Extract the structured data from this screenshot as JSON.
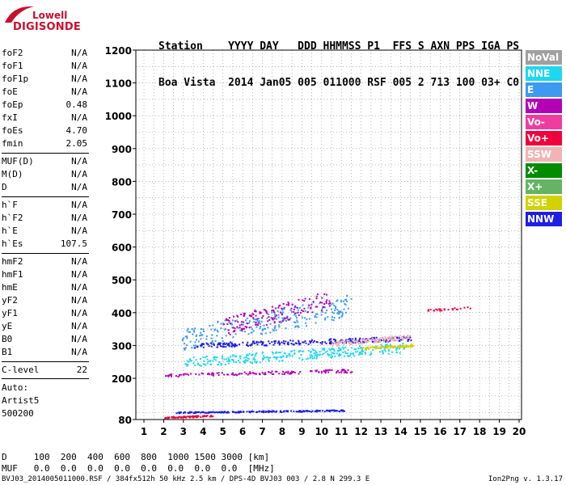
{
  "logo": {
    "line1": "Lowell",
    "line2": "DIGISONDE"
  },
  "header": {
    "row1": "Station    YYYY DAY   DDD HHMMSS P1  FFS S AXN PPS IGA PS",
    "row2": "Boa Vista  2014 Jan05 005 011000 RSF 005 2 713 100 03+ C0"
  },
  "params": [
    {
      "name": "foF2",
      "value": "N/A"
    },
    {
      "name": "foF1",
      "value": "N/A"
    },
    {
      "name": "foF1p",
      "value": "N/A"
    },
    {
      "name": "foE",
      "value": "N/A"
    },
    {
      "name": "foEp",
      "value": "0.48"
    },
    {
      "name": "fxI",
      "value": "N/A"
    },
    {
      "name": "foEs",
      "value": "4.70"
    },
    {
      "name": "fmin",
      "value": "2.05"
    },
    {
      "name": "MUF(D)",
      "value": "N/A"
    },
    {
      "name": "M(D)",
      "value": "N/A"
    },
    {
      "name": "D",
      "value": "N/A"
    },
    {
      "name": "h`F",
      "value": "N/A"
    },
    {
      "name": "h`F2",
      "value": "N/A"
    },
    {
      "name": "h`E",
      "value": "N/A"
    },
    {
      "name": "h`Es",
      "value": "107.5"
    },
    {
      "name": "hmF2",
      "value": "N/A"
    },
    {
      "name": "hmF1",
      "value": "N/A"
    },
    {
      "name": "hmE",
      "value": "N/A"
    },
    {
      "name": "yF2",
      "value": "N/A"
    },
    {
      "name": "yF1",
      "value": "N/A"
    },
    {
      "name": "yE",
      "value": "N/A"
    },
    {
      "name": "B0",
      "value": "N/A"
    },
    {
      "name": "B1",
      "value": "N/A"
    },
    {
      "name": "C-level",
      "value": "22"
    }
  ],
  "auto": [
    "Auto:",
    "Artist5",
    "500200"
  ],
  "legend": [
    {
      "label": "NoVal",
      "color": "#a0a0a0"
    },
    {
      "label": "NNE",
      "color": "#1ed7f0"
    },
    {
      "label": "E",
      "color": "#3c9bf0"
    },
    {
      "label": "W",
      "color": "#b400b4"
    },
    {
      "label": "Vo-",
      "color": "#f03ca0"
    },
    {
      "label": "Vo+",
      "color": "#f0003c"
    },
    {
      "label": "SSW",
      "color": "#f0b4b4"
    },
    {
      "label": "X-",
      "color": "#008c00"
    },
    {
      "label": "X+",
      "color": "#64b464"
    },
    {
      "label": "SSE",
      "color": "#d2d200"
    },
    {
      "label": "NNW",
      "color": "#1e1ee6"
    }
  ],
  "bottom": {
    "row1": "D     100  200  400  600  800  1000 1500 3000 [km]",
    "row2": "MUF   0.0  0.0  0.0  0.0  0.0  0.0  0.0  0.0  [MHz]"
  },
  "footer": "BVJ03_2014005011000.RSF / 384fx512h 50 kHz 2.5 km / DPS-4D BVJ03 003 / 2.8 N 299.3 E",
  "version": "Ion2Png v. 1.3.17",
  "chart_data": {
    "type": "scatter",
    "x_ticks": [
      "1",
      "2",
      "3",
      "4",
      "5",
      "6",
      "7",
      "8",
      "9",
      "10",
      "11",
      "12",
      "13",
      "14",
      "15",
      "16",
      "17",
      "18",
      "19",
      "20"
    ],
    "y_ticks": [
      "80",
      "200",
      "300",
      "400",
      "500",
      "600",
      "700",
      "800",
      "900",
      "1000",
      "1100",
      "1200"
    ],
    "xlim": [
      1,
      20
    ],
    "ylim": [
      80,
      1200
    ],
    "grid": true,
    "traces": [
      {
        "color": "#1ed7f0",
        "x0": 3.0,
        "x1": 14.2,
        "y0": 235,
        "y1": 310,
        "count": 320
      },
      {
        "color": "#3c9bf0",
        "x0": 2.9,
        "x1": 11.5,
        "y0": 285,
        "y1": 460,
        "count": 260
      },
      {
        "color": "#1e1ee6",
        "x0": 3.5,
        "x1": 14.5,
        "y0": 295,
        "y1": 330,
        "count": 260
      },
      {
        "color": "#1e1ee6",
        "x0": 2.6,
        "x1": 11.2,
        "y0": 100,
        "y1": 110,
        "count": 200
      },
      {
        "color": "#f0b4b4",
        "x0": 10.5,
        "x1": 14.5,
        "y0": 300,
        "y1": 335,
        "count": 120
      },
      {
        "color": "#d2d200",
        "x0": 12.0,
        "x1": 14.6,
        "y0": 290,
        "y1": 305,
        "count": 90
      },
      {
        "color": "#b400b4",
        "x0": 2.0,
        "x1": 11.5,
        "y0": 205,
        "y1": 230,
        "count": 140
      },
      {
        "color": "#f0003c",
        "x0": 2.0,
        "x1": 4.5,
        "y0": 85,
        "y1": 95,
        "count": 80
      },
      {
        "color": "#b400b4",
        "x0": 5.0,
        "x1": 10.5,
        "y0": 330,
        "y1": 470,
        "count": 150
      },
      {
        "color": "#f0003c",
        "x0": 15.2,
        "x1": 17.5,
        "y0": 405,
        "y1": 420,
        "count": 25
      }
    ]
  }
}
